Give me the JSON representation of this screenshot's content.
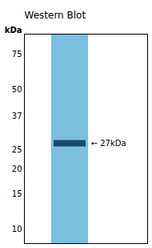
{
  "chart_data": {
    "type": "blot",
    "title": "Western Blot",
    "ylabel": "kDa",
    "values": [
      27
    ],
    "value_labels": [
      "← 27kDa"
    ],
    "data_labels": true,
    "colors": [
      "#7bbfde",
      "#1a4a72"
    ],
    "log": "y",
    "ylim": [
      8.5,
      95
    ],
    "yticks": [
      75,
      50,
      37,
      25,
      20,
      15,
      10
    ],
    "tick_labels": "y",
    "grid": false
  }
}
